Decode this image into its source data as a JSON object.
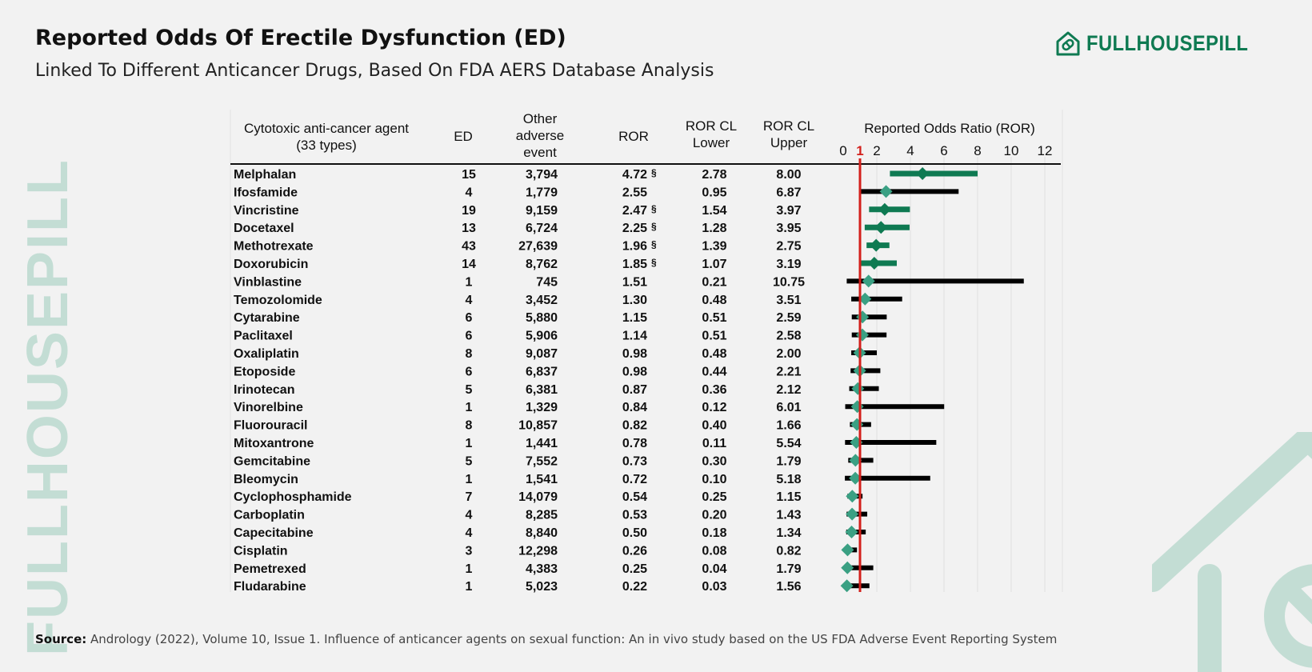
{
  "header": {
    "title": "Reported Odds Of Erectile Dysfunction (ED)",
    "subtitle": "Linked To Different Anticancer Drugs, Based On FDA AERS Database Analysis"
  },
  "brand": {
    "name": "FULLHOUSEPILL",
    "color": "#0f7a52"
  },
  "watermark": {
    "text": "FULLHOUSEPILL"
  },
  "source": {
    "label": "Source:",
    "text": "Andrology (2022), Volume 10, Issue 1. Influence of anticancer agents on sexual function: An in vivo study based on the US FDA Adverse Event Reporting System"
  },
  "chart_data": {
    "type": "table",
    "columns": {
      "agent": "Cytotoxic anti-cancer agent (33 types)",
      "ed": "ED",
      "other": "Other adverse event",
      "ror": "ROR",
      "lower": "ROR CL Lower",
      "upper": "ROR CL Upper",
      "plot": "Reported Odds Ratio (ROR)"
    },
    "header_lines": {
      "agent": [
        "Cytotoxic anti-cancer agent",
        "(33 types)"
      ],
      "other": [
        "Other",
        "adverse",
        "event"
      ],
      "lower": [
        "ROR CL",
        "Lower"
      ],
      "upper": [
        "ROR CL",
        "Upper"
      ]
    },
    "axis": {
      "min": 0,
      "max": 12,
      "ticks": [
        0,
        2,
        4,
        6,
        8,
        10,
        12
      ],
      "reference_line": 1,
      "reference_label": "1"
    },
    "significance_marker": "§",
    "colors": {
      "significant": "#0f7a52",
      "diamond": "#3aa083",
      "nonsignificant": "#000000",
      "reference": "#d3201c"
    },
    "rows": [
      {
        "drug": "Melphalan",
        "ed": "15",
        "other": "3,794",
        "ror": "4.72",
        "lower": "2.78",
        "upper": "8.00",
        "sig": true,
        "ror_v": 4.72,
        "lower_v": 2.78,
        "upper_v": 8.0
      },
      {
        "drug": "Ifosfamide",
        "ed": "4",
        "other": "1,779",
        "ror": "2.55",
        "lower": "0.95",
        "upper": "6.87",
        "sig": false,
        "ror_v": 2.55,
        "lower_v": 0.95,
        "upper_v": 6.87
      },
      {
        "drug": "Vincristine",
        "ed": "19",
        "other": "9,159",
        "ror": "2.47",
        "lower": "1.54",
        "upper": "3.97",
        "sig": true,
        "ror_v": 2.47,
        "lower_v": 1.54,
        "upper_v": 3.97
      },
      {
        "drug": "Docetaxel",
        "ed": "13",
        "other": "6,724",
        "ror": "2.25",
        "lower": "1.28",
        "upper": "3.95",
        "sig": true,
        "ror_v": 2.25,
        "lower_v": 1.28,
        "upper_v": 3.95
      },
      {
        "drug": "Methotrexate",
        "ed": "43",
        "other": "27,639",
        "ror": "1.96",
        "lower": "1.39",
        "upper": "2.75",
        "sig": true,
        "ror_v": 1.96,
        "lower_v": 1.39,
        "upper_v": 2.75
      },
      {
        "drug": "Doxorubicin",
        "ed": "14",
        "other": "8,762",
        "ror": "1.85",
        "lower": "1.07",
        "upper": "3.19",
        "sig": true,
        "ror_v": 1.85,
        "lower_v": 1.07,
        "upper_v": 3.19
      },
      {
        "drug": "Vinblastine",
        "ed": "1",
        "other": "745",
        "ror": "1.51",
        "lower": "0.21",
        "upper": "10.75",
        "sig": false,
        "ror_v": 1.51,
        "lower_v": 0.21,
        "upper_v": 10.75
      },
      {
        "drug": "Temozolomide",
        "ed": "4",
        "other": "3,452",
        "ror": "1.30",
        "lower": "0.48",
        "upper": "3.51",
        "sig": false,
        "ror_v": 1.3,
        "lower_v": 0.48,
        "upper_v": 3.51
      },
      {
        "drug": "Cytarabine",
        "ed": "6",
        "other": "5,880",
        "ror": "1.15",
        "lower": "0.51",
        "upper": "2.59",
        "sig": false,
        "ror_v": 1.15,
        "lower_v": 0.51,
        "upper_v": 2.59
      },
      {
        "drug": "Paclitaxel",
        "ed": "6",
        "other": "5,906",
        "ror": "1.14",
        "lower": "0.51",
        "upper": "2.58",
        "sig": false,
        "ror_v": 1.14,
        "lower_v": 0.51,
        "upper_v": 2.58
      },
      {
        "drug": "Oxaliplatin",
        "ed": "8",
        "other": "9,087",
        "ror": "0.98",
        "lower": "0.48",
        "upper": "2.00",
        "sig": false,
        "ror_v": 0.98,
        "lower_v": 0.48,
        "upper_v": 2.0
      },
      {
        "drug": "Etoposide",
        "ed": "6",
        "other": "6,837",
        "ror": "0.98",
        "lower": "0.44",
        "upper": "2.21",
        "sig": false,
        "ror_v": 0.98,
        "lower_v": 0.44,
        "upper_v": 2.21
      },
      {
        "drug": "Irinotecan",
        "ed": "5",
        "other": "6,381",
        "ror": "0.87",
        "lower": "0.36",
        "upper": "2.12",
        "sig": false,
        "ror_v": 0.87,
        "lower_v": 0.36,
        "upper_v": 2.12
      },
      {
        "drug": "Vinorelbine",
        "ed": "1",
        "other": "1,329",
        "ror": "0.84",
        "lower": "0.12",
        "upper": "6.01",
        "sig": false,
        "ror_v": 0.84,
        "lower_v": 0.12,
        "upper_v": 6.01
      },
      {
        "drug": "Fluorouracil",
        "ed": "8",
        "other": "10,857",
        "ror": "0.82",
        "lower": "0.40",
        "upper": "1.66",
        "sig": false,
        "ror_v": 0.82,
        "lower_v": 0.4,
        "upper_v": 1.66
      },
      {
        "drug": "Mitoxantrone",
        "ed": "1",
        "other": "1,441",
        "ror": "0.78",
        "lower": "0.11",
        "upper": "5.54",
        "sig": false,
        "ror_v": 0.78,
        "lower_v": 0.11,
        "upper_v": 5.54
      },
      {
        "drug": "Gemcitabine",
        "ed": "5",
        "other": "7,552",
        "ror": "0.73",
        "lower": "0.30",
        "upper": "1.79",
        "sig": false,
        "ror_v": 0.73,
        "lower_v": 0.3,
        "upper_v": 1.79
      },
      {
        "drug": "Bleomycin",
        "ed": "1",
        "other": "1,541",
        "ror": "0.72",
        "lower": "0.10",
        "upper": "5.18",
        "sig": false,
        "ror_v": 0.72,
        "lower_v": 0.1,
        "upper_v": 5.18
      },
      {
        "drug": "Cyclophosphamide",
        "ed": "7",
        "other": "14,079",
        "ror": "0.54",
        "lower": "0.25",
        "upper": "1.15",
        "sig": false,
        "ror_v": 0.54,
        "lower_v": 0.25,
        "upper_v": 1.15
      },
      {
        "drug": "Carboplatin",
        "ed": "4",
        "other": "8,285",
        "ror": "0.53",
        "lower": "0.20",
        "upper": "1.43",
        "sig": false,
        "ror_v": 0.53,
        "lower_v": 0.2,
        "upper_v": 1.43
      },
      {
        "drug": "Capecitabine",
        "ed": "4",
        "other": "8,840",
        "ror": "0.50",
        "lower": "0.18",
        "upper": "1.34",
        "sig": false,
        "ror_v": 0.5,
        "lower_v": 0.18,
        "upper_v": 1.34
      },
      {
        "drug": "Cisplatin",
        "ed": "3",
        "other": "12,298",
        "ror": "0.26",
        "lower": "0.08",
        "upper": "0.82",
        "sig": false,
        "ror_v": 0.26,
        "lower_v": 0.08,
        "upper_v": 0.82
      },
      {
        "drug": "Pemetrexed",
        "ed": "1",
        "other": "4,383",
        "ror": "0.25",
        "lower": "0.04",
        "upper": "1.79",
        "sig": false,
        "ror_v": 0.25,
        "lower_v": 0.04,
        "upper_v": 1.79
      },
      {
        "drug": "Fludarabine",
        "ed": "1",
        "other": "5,023",
        "ror": "0.22",
        "lower": "0.03",
        "upper": "1.56",
        "sig": false,
        "ror_v": 0.22,
        "lower_v": 0.03,
        "upper_v": 1.56
      }
    ]
  }
}
